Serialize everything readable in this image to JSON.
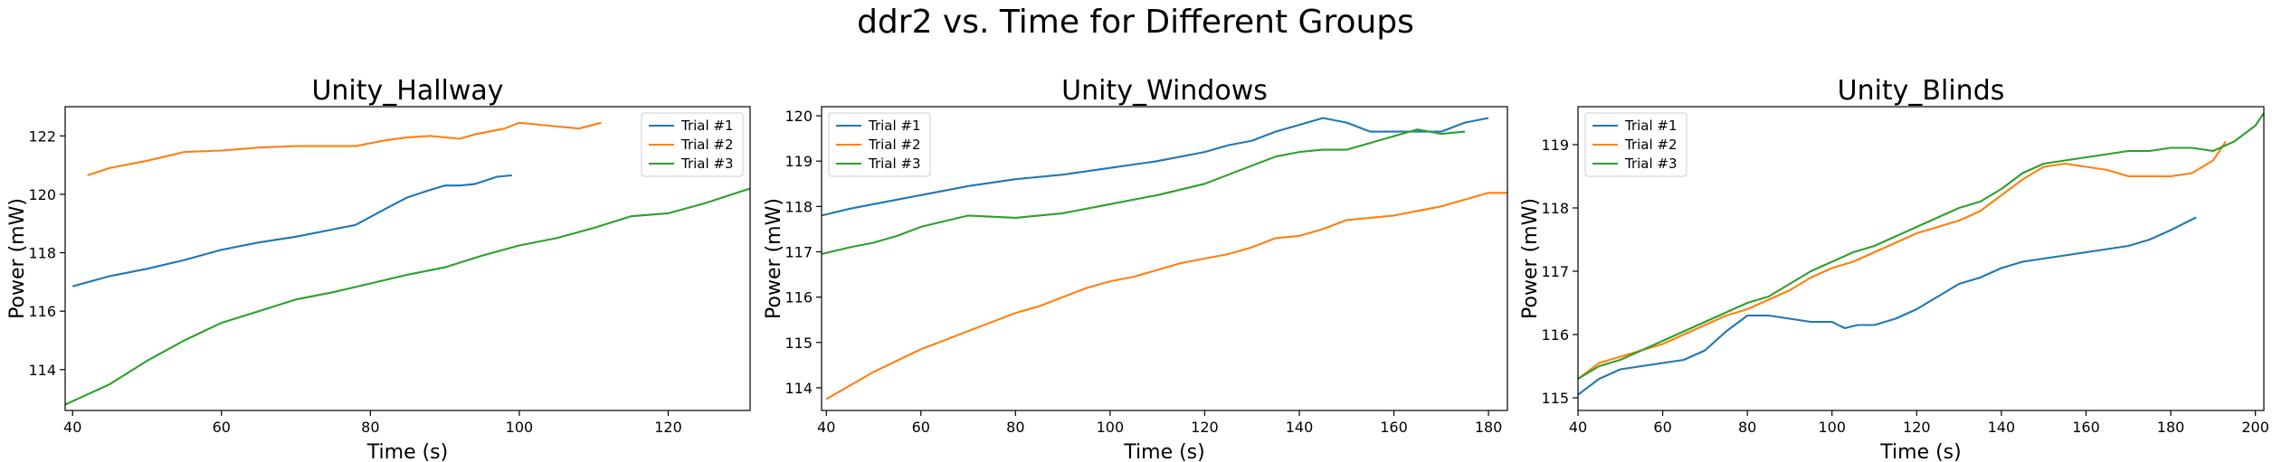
{
  "figure": {
    "title": "ddr2 vs. Time for Different Groups"
  },
  "chart_data": [
    {
      "type": "line",
      "title": "Unity_Hallway",
      "xlabel": "Time (s)",
      "ylabel": "Power (mW)",
      "xlim": [
        39,
        131
      ],
      "ylim": [
        112.6,
        123.0
      ],
      "xticks": [
        40,
        60,
        80,
        100,
        120
      ],
      "yticks": [
        114,
        116,
        118,
        120,
        122
      ],
      "legend": "top-right",
      "grid": false,
      "series": [
        {
          "name": "Trial #1",
          "color": "#1f77b4",
          "x": [
            40,
            45,
            50,
            55,
            60,
            65,
            70,
            75,
            78,
            82,
            85,
            88,
            90,
            92,
            94,
            97,
            99
          ],
          "y": [
            116.85,
            117.2,
            117.45,
            117.75,
            118.1,
            118.35,
            118.55,
            118.8,
            118.95,
            119.5,
            119.9,
            120.15,
            120.3,
            120.3,
            120.35,
            120.6,
            120.65
          ]
        },
        {
          "name": "Trial #2",
          "color": "#ff7f0e",
          "x": [
            42,
            45,
            50,
            55,
            60,
            65,
            70,
            75,
            78,
            82,
            85,
            88,
            92,
            94,
            98,
            100,
            104,
            108,
            111
          ],
          "y": [
            120.65,
            120.9,
            121.15,
            121.45,
            121.5,
            121.6,
            121.65,
            121.65,
            121.65,
            121.85,
            121.95,
            122.0,
            121.9,
            122.05,
            122.25,
            122.45,
            122.35,
            122.25,
            122.45
          ]
        },
        {
          "name": "Trial #3",
          "color": "#2ca02c",
          "x": [
            39,
            45,
            50,
            55,
            60,
            65,
            70,
            75,
            80,
            85,
            90,
            95,
            100,
            105,
            110,
            115,
            120,
            125,
            131
          ],
          "y": [
            112.8,
            113.5,
            114.3,
            115.0,
            115.6,
            116.0,
            116.4,
            116.65,
            116.95,
            117.25,
            117.5,
            117.9,
            118.25,
            118.5,
            118.85,
            119.25,
            119.35,
            119.7,
            120.2
          ]
        }
      ]
    },
    {
      "type": "line",
      "title": "Unity_Windows",
      "xlabel": "Time (s)",
      "ylabel": "Power (mW)",
      "xlim": [
        39,
        184
      ],
      "ylim": [
        113.5,
        120.2
      ],
      "xticks": [
        40,
        60,
        80,
        100,
        120,
        140,
        160,
        180
      ],
      "yticks": [
        114,
        115,
        116,
        117,
        118,
        119,
        120
      ],
      "legend": "top-left",
      "grid": false,
      "series": [
        {
          "name": "Trial #1",
          "color": "#1f77b4",
          "x": [
            39,
            45,
            50,
            55,
            60,
            70,
            80,
            90,
            100,
            110,
            120,
            125,
            130,
            135,
            140,
            145,
            150,
            155,
            160,
            170,
            175,
            180
          ],
          "y": [
            117.8,
            117.95,
            118.05,
            118.15,
            118.25,
            118.45,
            118.6,
            118.7,
            118.85,
            119.0,
            119.2,
            119.35,
            119.45,
            119.65,
            119.8,
            119.95,
            119.85,
            119.65,
            119.65,
            119.65,
            119.85,
            119.95
          ]
        },
        {
          "name": "Trial #2",
          "color": "#ff7f0e",
          "x": [
            40,
            45,
            50,
            55,
            60,
            65,
            70,
            75,
            80,
            85,
            90,
            95,
            100,
            105,
            110,
            115,
            120,
            125,
            130,
            135,
            140,
            145,
            150,
            155,
            160,
            165,
            170,
            175,
            180,
            184
          ],
          "y": [
            113.75,
            114.05,
            114.35,
            114.6,
            114.85,
            115.05,
            115.25,
            115.45,
            115.65,
            115.8,
            116.0,
            116.2,
            116.35,
            116.45,
            116.6,
            116.75,
            116.85,
            116.95,
            117.1,
            117.3,
            117.35,
            117.5,
            117.7,
            117.75,
            117.8,
            117.9,
            118.0,
            118.15,
            118.3,
            118.3
          ]
        },
        {
          "name": "Trial #3",
          "color": "#2ca02c",
          "x": [
            39,
            45,
            50,
            55,
            60,
            70,
            80,
            90,
            100,
            110,
            120,
            125,
            130,
            135,
            140,
            145,
            150,
            155,
            160,
            165,
            170,
            175
          ],
          "y": [
            116.95,
            117.1,
            117.2,
            117.35,
            117.55,
            117.8,
            117.75,
            117.85,
            118.05,
            118.25,
            118.5,
            118.7,
            118.9,
            119.1,
            119.2,
            119.25,
            119.25,
            119.4,
            119.55,
            119.7,
            119.6,
            119.65
          ]
        }
      ]
    },
    {
      "type": "line",
      "title": "Unity_Blinds",
      "xlabel": "Time (s)",
      "ylabel": "Power (mW)",
      "xlim": [
        40,
        202
      ],
      "ylim": [
        114.8,
        119.6
      ],
      "xticks": [
        40,
        60,
        80,
        100,
        120,
        140,
        160,
        180,
        200
      ],
      "yticks": [
        115,
        116,
        117,
        118,
        119
      ],
      "legend": "top-left",
      "grid": false,
      "series": [
        {
          "name": "Trial #1",
          "color": "#1f77b4",
          "x": [
            40,
            45,
            50,
            55,
            60,
            65,
            70,
            75,
            80,
            85,
            90,
            95,
            100,
            103,
            106,
            110,
            115,
            120,
            125,
            130,
            135,
            140,
            145,
            150,
            155,
            160,
            165,
            170,
            175,
            180,
            186
          ],
          "y": [
            115.05,
            115.3,
            115.45,
            115.5,
            115.55,
            115.6,
            115.75,
            116.05,
            116.3,
            116.3,
            116.25,
            116.2,
            116.2,
            116.1,
            116.15,
            116.15,
            116.25,
            116.4,
            116.6,
            116.8,
            116.9,
            117.05,
            117.15,
            117.2,
            117.25,
            117.3,
            117.35,
            117.4,
            117.5,
            117.65,
            117.85
          ]
        },
        {
          "name": "Trial #2",
          "color": "#ff7f0e",
          "x": [
            40,
            45,
            50,
            55,
            60,
            65,
            70,
            75,
            80,
            85,
            90,
            95,
            100,
            105,
            110,
            115,
            120,
            125,
            130,
            135,
            140,
            145,
            150,
            155,
            160,
            165,
            170,
            175,
            180,
            185,
            190,
            193
          ],
          "y": [
            115.3,
            115.55,
            115.65,
            115.75,
            115.85,
            116.0,
            116.15,
            116.3,
            116.4,
            116.55,
            116.7,
            116.9,
            117.05,
            117.15,
            117.3,
            117.45,
            117.6,
            117.7,
            117.8,
            117.95,
            118.2,
            118.45,
            118.65,
            118.7,
            118.65,
            118.6,
            118.5,
            118.5,
            118.5,
            118.55,
            118.75,
            119.05
          ]
        },
        {
          "name": "Trial #3",
          "color": "#2ca02c",
          "x": [
            40,
            45,
            50,
            55,
            60,
            65,
            70,
            75,
            80,
            85,
            90,
            95,
            100,
            105,
            110,
            115,
            120,
            125,
            130,
            135,
            140,
            145,
            150,
            155,
            160,
            165,
            170,
            175,
            180,
            185,
            190,
            195,
            200,
            202
          ],
          "y": [
            115.3,
            115.5,
            115.6,
            115.75,
            115.9,
            116.05,
            116.2,
            116.35,
            116.5,
            116.6,
            116.8,
            117.0,
            117.15,
            117.3,
            117.4,
            117.55,
            117.7,
            117.85,
            118.0,
            118.1,
            118.3,
            118.55,
            118.7,
            118.75,
            118.8,
            118.85,
            118.9,
            118.9,
            118.95,
            118.95,
            118.9,
            119.05,
            119.3,
            119.5
          ]
        }
      ]
    }
  ]
}
